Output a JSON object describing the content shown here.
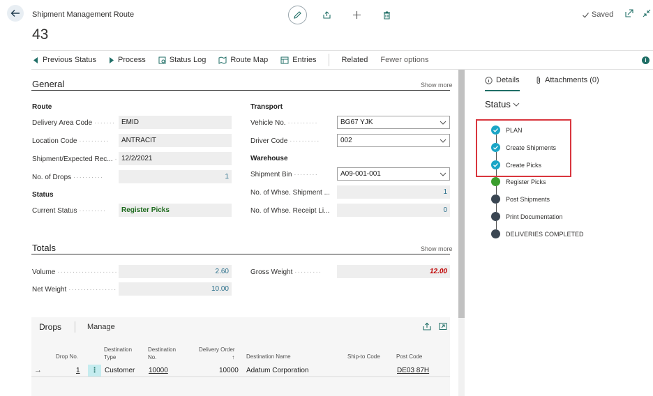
{
  "header": {
    "page_caption": "Shipment Management Route",
    "record_no": "43",
    "saved_label": "Saved"
  },
  "actions": {
    "previous_status": "Previous Status",
    "process": "Process",
    "status_log": "Status Log",
    "route_map": "Route Map",
    "entries": "Entries",
    "related": "Related",
    "fewer_options": "Fewer options",
    "info": "i"
  },
  "general": {
    "title": "General",
    "show_more": "Show more",
    "route_group": "Route",
    "delivery_area_code_label": "Delivery Area Code",
    "delivery_area_code": "EMID",
    "location_code_label": "Location Code",
    "location_code": "ANTRACIT",
    "shipment_date_label": "Shipment/Expected Rec...",
    "shipment_date": "12/2/2021",
    "no_of_drops_label": "No. of Drops",
    "no_of_drops": "1",
    "status_group": "Status",
    "current_status_label": "Current Status",
    "current_status": "Register Picks",
    "transport_group": "Transport",
    "vehicle_no_label": "Vehicle No.",
    "vehicle_no": "BG67 YJK",
    "driver_code_label": "Driver Code",
    "driver_code": "002",
    "warehouse_group": "Warehouse",
    "shipment_bin_label": "Shipment Bin",
    "shipment_bin": "A09-001-001",
    "whse_shipment_label": "No. of Whse. Shipment ...",
    "whse_shipment": "1",
    "whse_receipt_label": "No. of Whse. Receipt Li...",
    "whse_receipt": "0"
  },
  "totals": {
    "title": "Totals",
    "show_more": "Show more",
    "volume_label": "Volume",
    "volume": "2.60",
    "net_weight_label": "Net Weight",
    "net_weight": "10.00",
    "gross_weight_label": "Gross Weight",
    "gross_weight": "12.00"
  },
  "drops": {
    "title": "Drops",
    "manage": "Manage",
    "columns": {
      "drop_no": "Drop No.",
      "destination_type": "Destination Type",
      "destination_no": "Destination No.",
      "delivery_order": "Delivery Order",
      "destination_name": "Destination Name",
      "ship_to_code": "Ship-to Code",
      "post_code": "Post Code"
    },
    "rows": [
      {
        "drop_no": "1",
        "destination_type": "Customer",
        "destination_no": "10000",
        "delivery_order": "10000",
        "destination_name": "Adatum Corporation",
        "ship_to_code": "",
        "post_code": "DE03 87H"
      }
    ]
  },
  "factbox": {
    "details_tab": "Details",
    "attachments_tab": "Attachments (0)",
    "status_title": "Status",
    "steps": [
      {
        "label": "PLAN",
        "state": "done"
      },
      {
        "label": "Create Shipments",
        "state": "done"
      },
      {
        "label": "Create Picks",
        "state": "done"
      },
      {
        "label": "Register Picks",
        "state": "current"
      },
      {
        "label": "Post Shipments",
        "state": "pending"
      },
      {
        "label": "Print Documentation",
        "state": "pending"
      },
      {
        "label": "DELIVERIES COMPLETED",
        "state": "pending"
      }
    ]
  },
  "colors": {
    "accent": "#1f6e66",
    "done": "#1aa5c6",
    "current": "#3b9e2e",
    "pending": "#3a4652",
    "highlight": "#d9363e",
    "status_text": "#1e6b1e",
    "gross_weight_text": "#c00000"
  },
  "icons": [
    "back-arrow-icon",
    "pencil-icon",
    "share-icon",
    "plus-icon",
    "trash-icon",
    "check-icon",
    "open-new-window-icon",
    "collapse-icon"
  ]
}
